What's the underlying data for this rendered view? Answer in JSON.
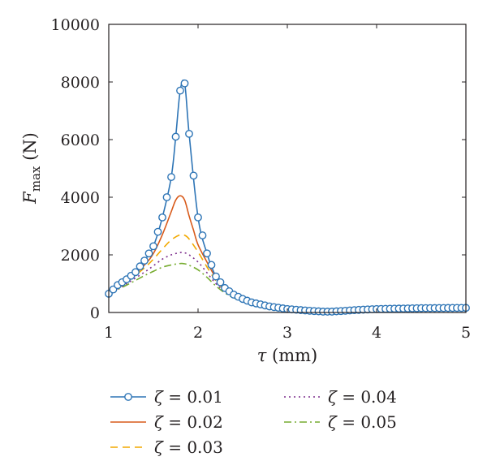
{
  "chart_data": {
    "type": "line",
    "xlabel": {
      "symbol": "τ",
      "unit": " (mm)"
    },
    "ylabel": {
      "symbol": "F",
      "subscript": "max",
      "unit": " (N)"
    },
    "xlim": [
      1,
      5
    ],
    "ylim": [
      0,
      10000
    ],
    "xticks": [
      1,
      2,
      3,
      4,
      5
    ],
    "yticks": [
      0,
      2000,
      4000,
      6000,
      8000,
      10000
    ],
    "grid": false,
    "legend_position": "bottom",
    "series": [
      {
        "name": "ζ = 0.01",
        "zeta_symbol": "ζ",
        "zeta_value": "= 0.01",
        "color": "#2e75b6",
        "line_style": "solid",
        "marker": "circle",
        "x": [
          1.0,
          1.1,
          1.2,
          1.3,
          1.4,
          1.5,
          1.6,
          1.7,
          1.75,
          1.8,
          1.85,
          1.9,
          2.0,
          2.1,
          2.2,
          2.3,
          2.4,
          2.5,
          2.6,
          2.8,
          3.0,
          3.2,
          3.4,
          3.5,
          3.6,
          3.8,
          4.0,
          4.5,
          5.0
        ],
        "y": [
          650,
          950,
          1150,
          1400,
          1800,
          2300,
          3300,
          4700,
          6100,
          7700,
          7950,
          6200,
          3300,
          2050,
          1250,
          850,
          620,
          470,
          350,
          210,
          120,
          70,
          30,
          30,
          50,
          90,
          120,
          150,
          160
        ]
      },
      {
        "name": "ζ = 0.02",
        "zeta_symbol": "ζ",
        "zeta_value": "= 0.02",
        "color": "#d85a1a",
        "line_style": "solid",
        "marker": "none",
        "x": [
          1.0,
          1.2,
          1.4,
          1.5,
          1.6,
          1.7,
          1.75,
          1.8,
          1.85,
          1.9,
          1.95,
          2.0,
          2.1,
          2.2,
          2.3,
          2.4,
          2.6,
          2.8,
          3.0,
          3.2,
          3.4,
          3.6,
          3.8,
          4.0,
          4.5,
          5.0
        ],
        "y": [
          650,
          1080,
          1650,
          2050,
          2700,
          3500,
          3900,
          4050,
          3900,
          3350,
          2850,
          2350,
          1750,
          1200,
          820,
          600,
          330,
          200,
          110,
          60,
          30,
          50,
          80,
          110,
          140,
          150
        ]
      },
      {
        "name": "ζ = 0.03",
        "zeta_symbol": "ζ",
        "zeta_value": "= 0.03",
        "color": "#f2a900",
        "line_style": "dashed",
        "marker": "none",
        "x": [
          1.0,
          1.2,
          1.4,
          1.5,
          1.6,
          1.7,
          1.8,
          1.85,
          1.9,
          2.0,
          2.1,
          2.2,
          2.3,
          2.4,
          2.6,
          2.8,
          3.0,
          3.2,
          3.4,
          3.6,
          3.8,
          4.0,
          4.5,
          5.0
        ],
        "y": [
          650,
          1050,
          1550,
          1850,
          2200,
          2520,
          2700,
          2680,
          2550,
          2100,
          1580,
          1100,
          780,
          570,
          320,
          190,
          100,
          55,
          30,
          50,
          80,
          105,
          135,
          145
        ]
      },
      {
        "name": "ζ = 0.04",
        "zeta_symbol": "ζ",
        "zeta_value": "= 0.04",
        "color": "#7e2f8e",
        "line_style": "dotted",
        "marker": "none",
        "x": [
          1.0,
          1.2,
          1.4,
          1.5,
          1.6,
          1.7,
          1.8,
          1.85,
          1.9,
          2.0,
          2.1,
          2.2,
          2.3,
          2.4,
          2.6,
          2.8,
          3.0,
          3.2,
          3.4,
          3.6,
          3.8,
          4.0,
          4.5,
          5.0
        ],
        "y": [
          650,
          1000,
          1400,
          1620,
          1850,
          2000,
          2080,
          2070,
          2000,
          1750,
          1380,
          1000,
          730,
          540,
          300,
          180,
          95,
          50,
          28,
          45,
          75,
          100,
          130,
          140
        ]
      },
      {
        "name": "ζ = 0.05",
        "zeta_symbol": "ζ",
        "zeta_value": "= 0.05",
        "color": "#77ac30",
        "line_style": "dashdot",
        "marker": "none",
        "x": [
          1.0,
          1.2,
          1.4,
          1.5,
          1.6,
          1.7,
          1.8,
          1.85,
          1.9,
          2.0,
          2.1,
          2.2,
          2.3,
          2.4,
          2.6,
          2.8,
          3.0,
          3.2,
          3.4,
          3.6,
          3.8,
          4.0,
          4.5,
          5.0
        ],
        "y": [
          650,
          950,
          1280,
          1430,
          1570,
          1650,
          1700,
          1690,
          1640,
          1480,
          1220,
          920,
          680,
          510,
          290,
          170,
          90,
          48,
          26,
          42,
          70,
          95,
          125,
          135
        ]
      }
    ]
  }
}
